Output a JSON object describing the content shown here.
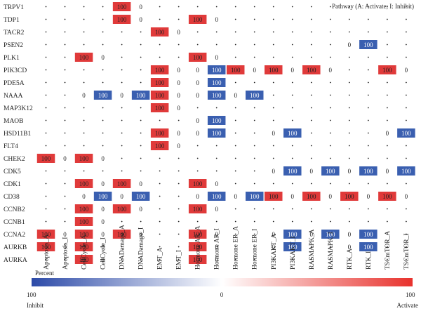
{
  "chart_data": {
    "type": "heatmap",
    "note": "Pathway (A: Activate; I: Inhibit)",
    "columns": [
      "Apoptosis_A",
      "Apoptosis_I",
      "CellCycle_A",
      "CellCycle_I",
      "DNADamage_A",
      "DNADamage_I",
      "EMT_A",
      "EMT_I",
      "Hormone AR_A",
      "Hormone AR_I",
      "Hormone ER_A",
      "Hormone ER_I",
      "PI3KAKT_A",
      "PI3KAKT_I",
      "RASMAPK_A",
      "RASMAPK_I",
      "RTK_A",
      "RTK_I",
      "TSCmTOR_A",
      "TSCmTOR_I"
    ],
    "rows": [
      "TRPV1",
      "TDP1",
      "TACR2",
      "PSEN2",
      "PLK1",
      "PIK3CD",
      "PDE5A",
      "NAAA",
      "MAP3K12",
      "MAOB",
      "HSD11B1",
      "FLT4",
      "CHEK2",
      "CDK5",
      "CDK1",
      "CD38",
      "CCNB2",
      "CCNB1",
      "CCNA2",
      "AURKB",
      "AURKA"
    ],
    "zero_label": "0",
    "cells": [
      {
        "row": "TRPV1",
        "col": "DNADamage_A",
        "value": 100
      },
      {
        "row": "TRPV1",
        "col": "DNADamage_I",
        "value": 0
      },
      {
        "row": "TDP1",
        "col": "DNADamage_A",
        "value": 100
      },
      {
        "row": "TDP1",
        "col": "DNADamage_I",
        "value": 0
      },
      {
        "row": "TDP1",
        "col": "Hormone AR_A",
        "value": 100
      },
      {
        "row": "TDP1",
        "col": "Hormone AR_I",
        "value": 0
      },
      {
        "row": "TACR2",
        "col": "EMT_A",
        "value": 100
      },
      {
        "row": "TACR2",
        "col": "EMT_I",
        "value": 0
      },
      {
        "row": "PSEN2",
        "col": "RTK_A",
        "value": 0
      },
      {
        "row": "PSEN2",
        "col": "RTK_I",
        "value": -100
      },
      {
        "row": "PLK1",
        "col": "CellCycle_A",
        "value": 100
      },
      {
        "row": "PLK1",
        "col": "CellCycle_I",
        "value": 0
      },
      {
        "row": "PLK1",
        "col": "Hormone AR_A",
        "value": 100
      },
      {
        "row": "PLK1",
        "col": "Hormone AR_I",
        "value": 0
      },
      {
        "row": "PIK3CD",
        "col": "EMT_A",
        "value": 100
      },
      {
        "row": "PIK3CD",
        "col": "EMT_I",
        "value": 0
      },
      {
        "row": "PIK3CD",
        "col": "Hormone AR_A",
        "value": 0
      },
      {
        "row": "PIK3CD",
        "col": "Hormone AR_I",
        "value": -100
      },
      {
        "row": "PIK3CD",
        "col": "Hormone ER_A",
        "value": 100
      },
      {
        "row": "PIK3CD",
        "col": "Hormone ER_I",
        "value": 0
      },
      {
        "row": "PIK3CD",
        "col": "PI3KAKT_A",
        "value": 100
      },
      {
        "row": "PIK3CD",
        "col": "PI3KAKT_I",
        "value": 0
      },
      {
        "row": "PIK3CD",
        "col": "RASMAPK_A",
        "value": 100
      },
      {
        "row": "PIK3CD",
        "col": "RASMAPK_I",
        "value": 0
      },
      {
        "row": "PIK3CD",
        "col": "TSCmTOR_A",
        "value": 100
      },
      {
        "row": "PIK3CD",
        "col": "TSCmTOR_I",
        "value": 0
      },
      {
        "row": "PDE5A",
        "col": "EMT_A",
        "value": 100
      },
      {
        "row": "PDE5A",
        "col": "EMT_I",
        "value": 0
      },
      {
        "row": "PDE5A",
        "col": "Hormone AR_A",
        "value": 0
      },
      {
        "row": "PDE5A",
        "col": "Hormone AR_I",
        "value": -100
      },
      {
        "row": "NAAA",
        "col": "CellCycle_A",
        "value": 0
      },
      {
        "row": "NAAA",
        "col": "CellCycle_I",
        "value": -100
      },
      {
        "row": "NAAA",
        "col": "DNADamage_A",
        "value": 0
      },
      {
        "row": "NAAA",
        "col": "DNADamage_I",
        "value": -100
      },
      {
        "row": "NAAA",
        "col": "EMT_A",
        "value": 100
      },
      {
        "row": "NAAA",
        "col": "EMT_I",
        "value": 0
      },
      {
        "row": "NAAA",
        "col": "Hormone AR_A",
        "value": 0
      },
      {
        "row": "NAAA",
        "col": "Hormone AR_I",
        "value": -100
      },
      {
        "row": "NAAA",
        "col": "Hormone ER_A",
        "value": 0
      },
      {
        "row": "NAAA",
        "col": "Hormone ER_I",
        "value": -100
      },
      {
        "row": "MAP3K12",
        "col": "EMT_A",
        "value": 100
      },
      {
        "row": "MAP3K12",
        "col": "EMT_I",
        "value": 0
      },
      {
        "row": "MAOB",
        "col": "Hormone AR_A",
        "value": 0
      },
      {
        "row": "MAOB",
        "col": "Hormone AR_I",
        "value": -100
      },
      {
        "row": "HSD11B1",
        "col": "EMT_A",
        "value": 100
      },
      {
        "row": "HSD11B1",
        "col": "EMT_I",
        "value": 0
      },
      {
        "row": "HSD11B1",
        "col": "Hormone AR_A",
        "value": 0
      },
      {
        "row": "HSD11B1",
        "col": "Hormone AR_I",
        "value": -100
      },
      {
        "row": "HSD11B1",
        "col": "PI3KAKT_A",
        "value": 0
      },
      {
        "row": "HSD11B1",
        "col": "PI3KAKT_I",
        "value": -100
      },
      {
        "row": "HSD11B1",
        "col": "TSCmTOR_A",
        "value": 0
      },
      {
        "row": "HSD11B1",
        "col": "TSCmTOR_I",
        "value": -100
      },
      {
        "row": "FLT4",
        "col": "EMT_A",
        "value": 100
      },
      {
        "row": "FLT4",
        "col": "EMT_I",
        "value": 0
      },
      {
        "row": "CHEK2",
        "col": "Apoptosis_A",
        "value": 100
      },
      {
        "row": "CHEK2",
        "col": "Apoptosis_I",
        "value": 0
      },
      {
        "row": "CHEK2",
        "col": "CellCycle_A",
        "value": 100
      },
      {
        "row": "CHEK2",
        "col": "CellCycle_I",
        "value": 0
      },
      {
        "row": "CDK5",
        "col": "PI3KAKT_A",
        "value": 0
      },
      {
        "row": "CDK5",
        "col": "PI3KAKT_I",
        "value": -100
      },
      {
        "row": "CDK5",
        "col": "RASMAPK_A",
        "value": 0
      },
      {
        "row": "CDK5",
        "col": "RASMAPK_I",
        "value": -100
      },
      {
        "row": "CDK5",
        "col": "RTK_A",
        "value": 0
      },
      {
        "row": "CDK5",
        "col": "RTK_I",
        "value": -100
      },
      {
        "row": "CDK5",
        "col": "TSCmTOR_A",
        "value": 0
      },
      {
        "row": "CDK5",
        "col": "TSCmTOR_I",
        "value": -100
      },
      {
        "row": "CDK1",
        "col": "CellCycle_A",
        "value": 100
      },
      {
        "row": "CDK1",
        "col": "CellCycle_I",
        "value": 0
      },
      {
        "row": "CDK1",
        "col": "DNADamage_A",
        "value": 100
      },
      {
        "row": "CDK1",
        "col": "DNADamage_I",
        "value": 0
      },
      {
        "row": "CDK1",
        "col": "Hormone AR_A",
        "value": 100
      },
      {
        "row": "CDK1",
        "col": "Hormone AR_I",
        "value": 0
      },
      {
        "row": "CD38",
        "col": "CellCycle_A",
        "value": 0
      },
      {
        "row": "CD38",
        "col": "CellCycle_I",
        "value": -100
      },
      {
        "row": "CD38",
        "col": "DNADamage_A",
        "value": 0
      },
      {
        "row": "CD38",
        "col": "DNADamage_I",
        "value": -100
      },
      {
        "row": "CD38",
        "col": "Hormone AR_A",
        "value": 0
      },
      {
        "row": "CD38",
        "col": "Hormone AR_I",
        "value": -100
      },
      {
        "row": "CD38",
        "col": "Hormone ER_A",
        "value": 0
      },
      {
        "row": "CD38",
        "col": "Hormone ER_I",
        "value": -100
      },
      {
        "row": "CD38",
        "col": "PI3KAKT_A",
        "value": 100
      },
      {
        "row": "CD38",
        "col": "PI3KAKT_I",
        "value": 0
      },
      {
        "row": "CD38",
        "col": "RASMAPK_A",
        "value": 100
      },
      {
        "row": "CD38",
        "col": "RASMAPK_I",
        "value": 0
      },
      {
        "row": "CD38",
        "col": "RTK_A",
        "value": 100
      },
      {
        "row": "CD38",
        "col": "RTK_I",
        "value": 0
      },
      {
        "row": "CD38",
        "col": "TSCmTOR_A",
        "value": 100
      },
      {
        "row": "CD38",
        "col": "TSCmTOR_I",
        "value": 0
      },
      {
        "row": "CCNB2",
        "col": "CellCycle_A",
        "value": 100
      },
      {
        "row": "CCNB2",
        "col": "CellCycle_I",
        "value": 0
      },
      {
        "row": "CCNB2",
        "col": "DNADamage_A",
        "value": 100
      },
      {
        "row": "CCNB2",
        "col": "DNADamage_I",
        "value": 0
      },
      {
        "row": "CCNB2",
        "col": "Hormone AR_A",
        "value": 100
      },
      {
        "row": "CCNB2",
        "col": "Hormone AR_I",
        "value": 0
      },
      {
        "row": "CCNB1",
        "col": "CellCycle_A",
        "value": 100
      },
      {
        "row": "CCNB1",
        "col": "CellCycle_I",
        "value": 0
      },
      {
        "row": "CCNA2",
        "col": "Apoptosis_A",
        "value": 100
      },
      {
        "row": "CCNA2",
        "col": "Apoptosis_I",
        "value": 0
      },
      {
        "row": "CCNA2",
        "col": "CellCycle_A",
        "value": 100
      },
      {
        "row": "CCNA2",
        "col": "CellCycle_I",
        "value": 0
      },
      {
        "row": "CCNA2",
        "col": "DNADamage_A",
        "value": 100
      },
      {
        "row": "CCNA2",
        "col": "DNADamage_I",
        "value": 0
      },
      {
        "row": "CCNA2",
        "col": "Hormone AR_A",
        "value": 100
      },
      {
        "row": "CCNA2",
        "col": "Hormone AR_I",
        "value": 0
      },
      {
        "row": "CCNA2",
        "col": "PI3KAKT_A",
        "value": 0
      },
      {
        "row": "CCNA2",
        "col": "PI3KAKT_I",
        "value": -100
      },
      {
        "row": "CCNA2",
        "col": "RASMAPK_A",
        "value": 0
      },
      {
        "row": "CCNA2",
        "col": "RASMAPK_I",
        "value": -100
      },
      {
        "row": "CCNA2",
        "col": "RTK_A",
        "value": 0
      },
      {
        "row": "CCNA2",
        "col": "RTK_I",
        "value": -100
      },
      {
        "row": "AURKB",
        "col": "Apoptosis_A",
        "value": 100
      },
      {
        "row": "AURKB",
        "col": "Apoptosis_I",
        "value": 0
      },
      {
        "row": "AURKB",
        "col": "CellCycle_A",
        "value": 100
      },
      {
        "row": "AURKB",
        "col": "CellCycle_I",
        "value": 0
      },
      {
        "row": "AURKB",
        "col": "Hormone AR_A",
        "value": 100
      },
      {
        "row": "AURKB",
        "col": "Hormone AR_I",
        "value": 0
      },
      {
        "row": "AURKB",
        "col": "PI3KAKT_A",
        "value": 0
      },
      {
        "row": "AURKB",
        "col": "PI3KAKT_I",
        "value": -100
      },
      {
        "row": "AURKB",
        "col": "RTK_A",
        "value": 0
      },
      {
        "row": "AURKB",
        "col": "RTK_I",
        "value": -100
      },
      {
        "row": "AURKA",
        "col": "CellCycle_A",
        "value": 100
      },
      {
        "row": "AURKA",
        "col": "CellCycle_I",
        "value": 0
      },
      {
        "row": "AURKA",
        "col": "Hormone AR_A",
        "value": 100
      },
      {
        "row": "AURKA",
        "col": "Hormone AR_I",
        "value": 0
      }
    ],
    "value_label": "100",
    "colorbar": {
      "title": "Percent",
      "min_label": "100",
      "mid_label": "0",
      "max_label": "100",
      "left_caption": "Inhibit",
      "right_caption": "Activate",
      "range": [
        -100,
        100
      ]
    },
    "colors": {
      "activate": "#e03a3a",
      "inhibit": "#3a5fb0",
      "mid": "#ffffff",
      "dot": "#222222",
      "text": "#222222"
    }
  }
}
